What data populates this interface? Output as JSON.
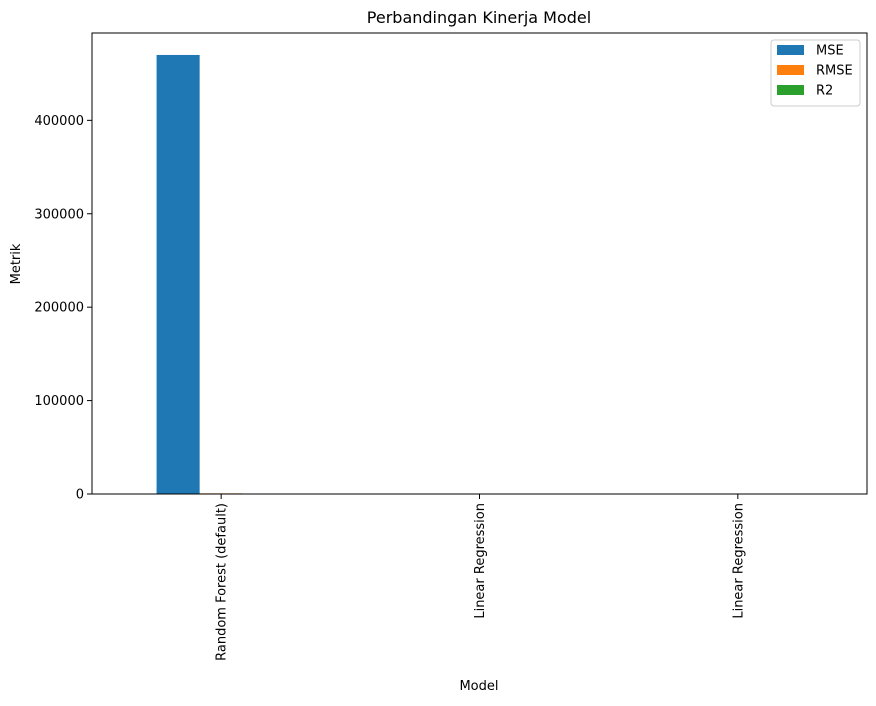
{
  "chart_data": {
    "type": "bar",
    "title": "Perbandingan Kinerja Model",
    "xlabel": "Model",
    "ylabel": "Metrik",
    "categories": [
      "Random Forest (default)",
      "Linear Regression",
      "Linear Regression"
    ],
    "series": [
      {
        "name": "MSE",
        "color": "#1f77b4",
        "values": [
          470000,
          0,
          0
        ]
      },
      {
        "name": "RMSE",
        "color": "#ff7f0e",
        "values": [
          686,
          0,
          0
        ]
      },
      {
        "name": "R2",
        "color": "#2ca02c",
        "values": [
          0.6,
          0,
          0
        ]
      }
    ],
    "ylim": [
      0,
      493500
    ],
    "yticks": [
      0,
      100000,
      200000,
      300000,
      400000
    ],
    "ytick_labels": [
      "0",
      "100000",
      "200000",
      "300000",
      "400000"
    ],
    "grid": false,
    "legend_position": "top-right"
  }
}
